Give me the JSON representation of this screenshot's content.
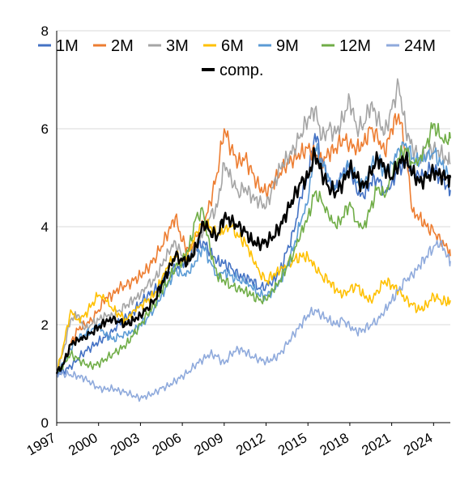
{
  "chart_data": {
    "type": "line",
    "title": "",
    "xlabel": "",
    "ylabel": "",
    "xlim": [
      1997,
      2025.2
    ],
    "ylim": [
      0,
      8
    ],
    "y_ticks": [
      "0",
      "2",
      "4",
      "6",
      "8"
    ],
    "x_ticks": [
      "1997",
      "2000",
      "2003",
      "2006",
      "2009",
      "2012",
      "2015",
      "2018",
      "2021",
      "2024"
    ],
    "grid": "horizontal",
    "legend_position": "top",
    "series": [
      {
        "name": "1M",
        "color": "#4472C4",
        "x": [
          1997.0,
          1997.5,
          1998.0,
          1998.5,
          1999.0,
          1999.5,
          2000.0,
          2000.5,
          2001.0,
          2001.5,
          2002.0,
          2002.5,
          2003.0,
          2003.5,
          2004.0,
          2004.5,
          2005.0,
          2005.5,
          2006.0,
          2006.5,
          2007.0,
          2007.5,
          2008.0,
          2008.5,
          2009.0,
          2009.5,
          2010.0,
          2010.5,
          2011.0,
          2011.5,
          2012.0,
          2012.5,
          2013.0,
          2013.5,
          2014.0,
          2014.5,
          2015.0,
          2015.5,
          2016.0,
          2016.5,
          2017.0,
          2017.5,
          2018.0,
          2018.5,
          2019.0,
          2019.5,
          2020.0,
          2020.5,
          2021.0,
          2021.5,
          2022.0,
          2022.5,
          2023.0,
          2023.5,
          2024.0,
          2024.5,
          2025.0,
          2025.2
        ],
        "values": [
          1.0,
          1.05,
          1.15,
          1.3,
          1.45,
          1.55,
          1.65,
          1.75,
          1.85,
          2.05,
          2.15,
          2.25,
          2.45,
          2.6,
          2.7,
          2.85,
          3.0,
          3.15,
          3.25,
          3.4,
          3.55,
          3.7,
          3.5,
          3.3,
          3.25,
          3.15,
          3.0,
          2.95,
          2.9,
          2.75,
          2.8,
          2.9,
          3.1,
          3.5,
          3.9,
          4.6,
          5.0,
          5.9,
          5.4,
          4.95,
          4.8,
          5.1,
          5.2,
          4.7,
          4.6,
          4.9,
          5.0,
          4.7,
          4.9,
          5.2,
          5.3,
          5.1,
          5.0,
          5.1,
          5.2,
          5.0,
          4.85,
          4.75
        ]
      },
      {
        "name": "2M",
        "color": "#ED7D31",
        "x": [
          1997.0,
          1997.5,
          1998.0,
          1998.5,
          1999.0,
          1999.5,
          2000.0,
          2000.5,
          2001.0,
          2001.5,
          2002.0,
          2002.5,
          2003.0,
          2003.5,
          2004.0,
          2004.5,
          2005.0,
          2005.5,
          2006.0,
          2006.5,
          2007.0,
          2007.5,
          2008.0,
          2008.5,
          2009.0,
          2009.5,
          2010.0,
          2010.5,
          2011.0,
          2011.5,
          2012.0,
          2012.5,
          2013.0,
          2013.5,
          2014.0,
          2014.5,
          2015.0,
          2015.5,
          2016.0,
          2016.5,
          2017.0,
          2017.5,
          2018.0,
          2018.5,
          2019.0,
          2019.5,
          2020.0,
          2020.5,
          2021.0,
          2021.5,
          2022.0,
          2022.5,
          2023.0,
          2023.5,
          2024.0,
          2024.5,
          2025.0,
          2025.2
        ],
        "values": [
          1.0,
          1.2,
          1.6,
          1.9,
          2.0,
          2.1,
          2.3,
          2.55,
          2.6,
          2.75,
          2.8,
          2.9,
          3.0,
          3.15,
          3.35,
          3.6,
          3.9,
          4.2,
          3.7,
          3.5,
          3.8,
          4.0,
          4.5,
          5.1,
          6.0,
          5.6,
          5.3,
          5.4,
          5.1,
          4.8,
          4.7,
          4.9,
          5.1,
          5.3,
          5.4,
          5.5,
          5.6,
          5.5,
          5.3,
          5.5,
          5.6,
          5.8,
          5.7,
          5.6,
          5.7,
          6.0,
          5.8,
          5.5,
          6.0,
          6.3,
          5.6,
          4.3,
          4.2,
          4.0,
          3.9,
          3.7,
          3.55,
          3.4
        ]
      },
      {
        "name": "3M",
        "color": "#A5A5A5",
        "x": [
          1997.0,
          1997.5,
          1998.0,
          1998.5,
          1999.0,
          1999.5,
          2000.0,
          2000.5,
          2001.0,
          2001.5,
          2002.0,
          2002.5,
          2003.0,
          2003.5,
          2004.0,
          2004.5,
          2005.0,
          2005.5,
          2006.0,
          2006.5,
          2007.0,
          2007.5,
          2008.0,
          2008.5,
          2009.0,
          2009.5,
          2010.0,
          2010.5,
          2011.0,
          2011.5,
          2012.0,
          2012.5,
          2013.0,
          2013.5,
          2014.0,
          2014.5,
          2015.0,
          2015.5,
          2016.0,
          2016.5,
          2017.0,
          2017.5,
          2018.0,
          2018.5,
          2019.0,
          2019.5,
          2020.0,
          2020.5,
          2021.0,
          2021.5,
          2022.0,
          2022.5,
          2023.0,
          2023.5,
          2024.0,
          2024.5,
          2025.0,
          2025.2
        ],
        "values": [
          1.0,
          1.5,
          2.1,
          2.2,
          1.9,
          2.0,
          2.1,
          2.2,
          2.2,
          2.3,
          2.4,
          2.5,
          2.6,
          2.8,
          2.9,
          3.2,
          3.5,
          3.7,
          3.4,
          3.3,
          3.6,
          3.9,
          4.2,
          4.4,
          5.3,
          5.0,
          4.7,
          4.8,
          4.6,
          4.5,
          4.4,
          4.8,
          5.2,
          5.4,
          5.6,
          5.9,
          6.2,
          6.4,
          5.8,
          6.0,
          5.9,
          6.2,
          6.6,
          6.0,
          6.1,
          6.5,
          6.2,
          5.9,
          6.4,
          6.9,
          6.0,
          5.6,
          5.4,
          5.5,
          5.6,
          5.5,
          5.35,
          5.3
        ]
      },
      {
        "name": "6M",
        "color": "#FFC000",
        "x": [
          1997.0,
          1997.5,
          1998.0,
          1998.5,
          1999.0,
          1999.5,
          2000.0,
          2000.5,
          2001.0,
          2001.5,
          2002.0,
          2002.5,
          2003.0,
          2003.5,
          2004.0,
          2004.5,
          2005.0,
          2005.5,
          2006.0,
          2006.5,
          2007.0,
          2007.5,
          2008.0,
          2008.5,
          2009.0,
          2009.5,
          2010.0,
          2010.5,
          2011.0,
          2011.5,
          2012.0,
          2012.5,
          2013.0,
          2013.5,
          2014.0,
          2014.5,
          2015.0,
          2015.5,
          2016.0,
          2016.5,
          2017.0,
          2017.5,
          2018.0,
          2018.5,
          2019.0,
          2019.5,
          2020.0,
          2020.5,
          2021.0,
          2021.5,
          2022.0,
          2022.5,
          2023.0,
          2023.5,
          2024.0,
          2024.5,
          2025.0,
          2025.2
        ],
        "values": [
          1.0,
          1.6,
          2.3,
          2.1,
          2.2,
          2.4,
          2.6,
          2.5,
          2.3,
          2.2,
          2.1,
          2.3,
          2.4,
          2.5,
          2.6,
          2.9,
          3.2,
          3.4,
          3.3,
          3.5,
          3.9,
          4.1,
          4.0,
          3.8,
          3.9,
          4.0,
          3.8,
          3.7,
          3.4,
          3.1,
          2.9,
          3.0,
          3.1,
          3.2,
          3.3,
          3.4,
          3.4,
          3.2,
          3.0,
          2.9,
          2.7,
          2.6,
          2.7,
          2.8,
          2.6,
          2.5,
          2.7,
          2.9,
          2.8,
          2.7,
          2.5,
          2.4,
          2.3,
          2.4,
          2.6,
          2.5,
          2.45,
          2.5
        ]
      },
      {
        "name": "9M",
        "color": "#5B9BD5",
        "x": [
          1997.0,
          1997.5,
          1998.0,
          1998.5,
          1999.0,
          1999.5,
          2000.0,
          2000.5,
          2001.0,
          2001.5,
          2002.0,
          2002.5,
          2003.0,
          2003.5,
          2004.0,
          2004.5,
          2005.0,
          2005.5,
          2006.0,
          2006.5,
          2007.0,
          2007.5,
          2008.0,
          2008.5,
          2009.0,
          2009.5,
          2010.0,
          2010.5,
          2011.0,
          2011.5,
          2012.0,
          2012.5,
          2013.0,
          2013.5,
          2014.0,
          2014.5,
          2015.0,
          2015.5,
          2016.0,
          2016.5,
          2017.0,
          2017.5,
          2018.0,
          2018.5,
          2019.0,
          2019.5,
          2020.0,
          2020.5,
          2021.0,
          2021.5,
          2022.0,
          2022.5,
          2023.0,
          2023.5,
          2024.0,
          2024.5,
          2025.0,
          2025.2
        ],
        "values": [
          1.0,
          1.2,
          1.5,
          1.7,
          1.8,
          1.9,
          2.0,
          1.8,
          1.7,
          1.75,
          1.8,
          1.85,
          2.0,
          2.15,
          2.35,
          2.6,
          2.85,
          3.1,
          3.0,
          3.05,
          3.3,
          3.6,
          3.3,
          3.0,
          3.1,
          3.0,
          2.9,
          2.85,
          2.75,
          2.6,
          2.6,
          2.7,
          2.9,
          3.2,
          3.6,
          4.1,
          4.5,
          5.6,
          5.3,
          5.0,
          4.8,
          5.1,
          5.3,
          4.9,
          4.8,
          5.2,
          5.4,
          5.1,
          5.3,
          5.6,
          5.7,
          5.4,
          5.3,
          5.4,
          5.5,
          5.3,
          5.1,
          5.0
        ]
      },
      {
        "name": "12M",
        "color": "#70AD47",
        "x": [
          1997.0,
          1997.5,
          1998.0,
          1998.5,
          1999.0,
          1999.5,
          2000.0,
          2000.5,
          2001.0,
          2001.5,
          2002.0,
          2002.5,
          2003.0,
          2003.5,
          2004.0,
          2004.5,
          2005.0,
          2005.5,
          2006.0,
          2006.5,
          2007.0,
          2007.5,
          2008.0,
          2008.5,
          2009.0,
          2009.5,
          2010.0,
          2010.5,
          2011.0,
          2011.5,
          2012.0,
          2012.5,
          2013.0,
          2013.5,
          2014.0,
          2014.5,
          2015.0,
          2015.5,
          2016.0,
          2016.5,
          2017.0,
          2017.5,
          2018.0,
          2018.5,
          2019.0,
          2019.5,
          2020.0,
          2020.5,
          2021.0,
          2021.5,
          2022.0,
          2022.5,
          2023.0,
          2023.5,
          2024.0,
          2024.5,
          2025.0,
          2025.2
        ],
        "values": [
          1.0,
          1.2,
          1.4,
          1.3,
          1.2,
          1.15,
          1.2,
          1.3,
          1.4,
          1.5,
          1.6,
          1.8,
          2.0,
          2.2,
          2.4,
          2.7,
          2.9,
          3.2,
          3.3,
          3.6,
          4.2,
          4.3,
          3.5,
          3.0,
          2.9,
          2.8,
          2.75,
          2.7,
          2.6,
          2.5,
          2.5,
          2.7,
          2.9,
          3.2,
          3.5,
          3.9,
          4.2,
          4.7,
          4.5,
          4.2,
          4.0,
          4.2,
          4.5,
          4.1,
          4.0,
          4.4,
          4.8,
          4.6,
          5.0,
          5.4,
          5.6,
          5.3,
          5.4,
          5.7,
          6.1,
          5.8,
          5.7,
          5.8
        ]
      },
      {
        "name": "24M",
        "color": "#8FAADC",
        "x": [
          1997.0,
          1997.5,
          1998.0,
          1998.5,
          1999.0,
          1999.5,
          2000.0,
          2000.5,
          2001.0,
          2001.5,
          2002.0,
          2002.5,
          2003.0,
          2003.5,
          2004.0,
          2004.5,
          2005.0,
          2005.5,
          2006.0,
          2006.5,
          2007.0,
          2007.5,
          2008.0,
          2008.5,
          2009.0,
          2009.5,
          2010.0,
          2010.5,
          2011.0,
          2011.5,
          2012.0,
          2012.5,
          2013.0,
          2013.5,
          2014.0,
          2014.5,
          2015.0,
          2015.5,
          2016.0,
          2016.5,
          2017.0,
          2017.5,
          2018.0,
          2018.5,
          2019.0,
          2019.5,
          2020.0,
          2020.5,
          2021.0,
          2021.5,
          2022.0,
          2022.5,
          2023.0,
          2023.5,
          2024.0,
          2024.5,
          2025.0,
          2025.2
        ],
        "values": [
          1.0,
          1.0,
          0.98,
          0.95,
          0.9,
          0.8,
          0.7,
          0.68,
          0.7,
          0.65,
          0.62,
          0.55,
          0.5,
          0.55,
          0.6,
          0.7,
          0.75,
          0.85,
          0.95,
          1.05,
          1.2,
          1.3,
          1.4,
          1.35,
          1.2,
          1.4,
          1.5,
          1.45,
          1.35,
          1.3,
          1.25,
          1.3,
          1.4,
          1.6,
          1.8,
          2.0,
          2.2,
          2.3,
          2.2,
          2.1,
          2.0,
          2.1,
          1.95,
          1.85,
          1.9,
          2.0,
          2.1,
          2.3,
          2.5,
          2.7,
          2.9,
          3.0,
          3.2,
          3.4,
          3.6,
          3.7,
          3.4,
          3.3
        ]
      },
      {
        "name": "comp.",
        "color": "#000000",
        "x": [
          1997.0,
          1997.5,
          1998.0,
          1998.5,
          1999.0,
          1999.5,
          2000.0,
          2000.5,
          2001.0,
          2001.5,
          2002.0,
          2002.5,
          2003.0,
          2003.5,
          2004.0,
          2004.5,
          2005.0,
          2005.5,
          2006.0,
          2006.5,
          2007.0,
          2007.5,
          2008.0,
          2008.5,
          2009.0,
          2009.5,
          2010.0,
          2010.5,
          2011.0,
          2011.5,
          2012.0,
          2012.5,
          2013.0,
          2013.5,
          2014.0,
          2014.5,
          2015.0,
          2015.5,
          2016.0,
          2016.5,
          2017.0,
          2017.5,
          2018.0,
          2018.5,
          2019.0,
          2019.5,
          2020.0,
          2020.5,
          2021.0,
          2021.5,
          2022.0,
          2022.5,
          2023.0,
          2023.5,
          2024.0,
          2024.5,
          2025.0,
          2025.2
        ],
        "values": [
          1.0,
          1.2,
          1.6,
          1.7,
          1.75,
          1.85,
          1.95,
          2.05,
          2.1,
          2.05,
          2.0,
          2.1,
          2.2,
          2.35,
          2.5,
          2.8,
          3.1,
          3.4,
          3.3,
          3.3,
          3.6,
          4.1,
          3.9,
          3.8,
          4.2,
          4.1,
          4.0,
          3.9,
          3.7,
          3.65,
          3.7,
          3.8,
          4.0,
          4.3,
          4.6,
          4.9,
          5.0,
          5.5,
          5.1,
          4.8,
          4.7,
          4.9,
          5.2,
          5.0,
          4.8,
          5.1,
          5.4,
          5.2,
          5.0,
          5.3,
          5.4,
          5.1,
          4.9,
          5.0,
          5.1,
          5.05,
          5.0,
          5.0
        ]
      }
    ]
  }
}
